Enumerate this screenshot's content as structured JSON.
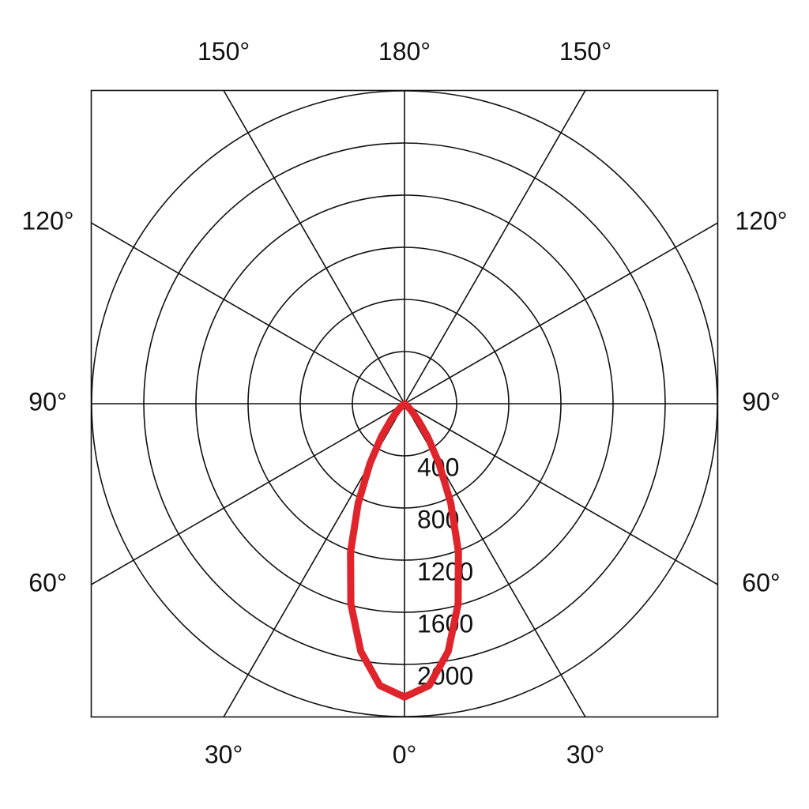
{
  "chart_data": {
    "type": "polar",
    "theta": [
      -60,
      -55,
      -50,
      -45,
      -40,
      -35,
      -30,
      -25,
      -20,
      -15,
      -10,
      -5,
      0,
      5,
      10,
      15,
      20,
      25,
      30,
      35,
      40,
      45,
      50,
      55,
      60
    ],
    "series": [
      {
        "color": "#e0242b",
        "values": [
          0,
          0,
          30,
          70,
          160,
          310,
          530,
          840,
          1210,
          1590,
          1930,
          2170,
          2250,
          2170,
          1930,
          1590,
          1210,
          840,
          530,
          310,
          160,
          70,
          30,
          0,
          0
        ]
      }
    ],
    "rlim": [
      0,
      2400
    ],
    "rticks": [
      400,
      800,
      1200,
      1600,
      2000
    ],
    "thetaticks": [
      {
        "value": 0,
        "label": "0°"
      },
      {
        "value": -30,
        "label": "30°"
      },
      {
        "value": 30,
        "label": "30°"
      },
      {
        "value": -60,
        "label": "60°"
      },
      {
        "value": 60,
        "label": "60°"
      },
      {
        "value": -90,
        "label": "90°"
      },
      {
        "value": 90,
        "label": "90°"
      },
      {
        "value": -120,
        "label": "120°"
      },
      {
        "value": 120,
        "label": "120°"
      },
      {
        "value": -150,
        "label": "150°"
      },
      {
        "value": 150,
        "label": "150°"
      },
      {
        "value": 180,
        "label": "180°"
      }
    ]
  }
}
